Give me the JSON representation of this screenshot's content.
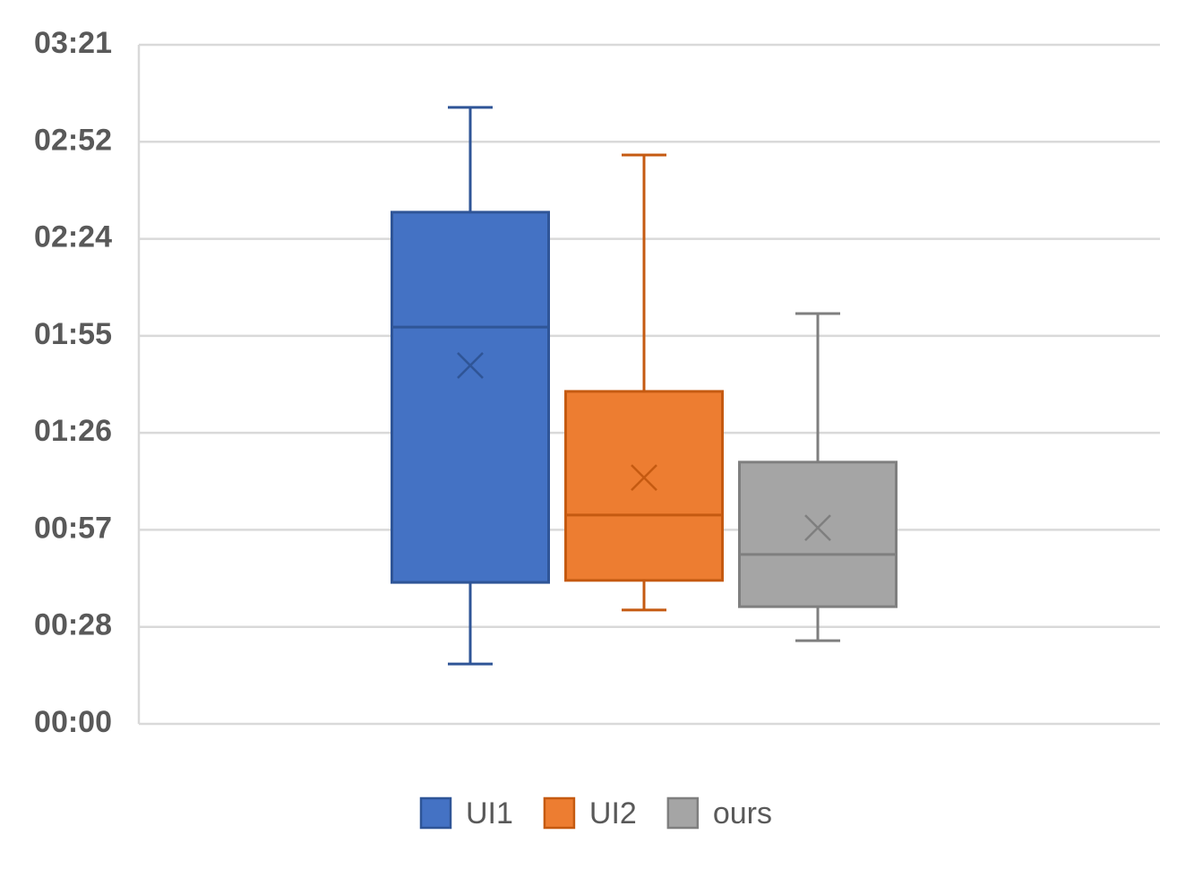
{
  "chart_data": {
    "type": "box",
    "ylim": [
      0,
      201.6
    ],
    "yticks": [
      {
        "value": 0,
        "label": "00:00"
      },
      {
        "value": 28.8,
        "label": "00:28"
      },
      {
        "value": 57.6,
        "label": "00:57"
      },
      {
        "value": 86.4,
        "label": "01:26"
      },
      {
        "value": 115.2,
        "label": "01:55"
      },
      {
        "value": 144,
        "label": "02:24"
      },
      {
        "value": 172.8,
        "label": "02:52"
      },
      {
        "value": 201.6,
        "label": "03:21"
      }
    ],
    "grid": true,
    "legend": "bottom",
    "series": [
      {
        "name": "UI1",
        "color": "#4472c4",
        "edge": "#2f5597",
        "min": 17.8,
        "q1": 42.0,
        "median": 117.8,
        "q3": 151.9,
        "max": 183.0,
        "mean": 106.4
      },
      {
        "name": "UI2",
        "color": "#ed7d31",
        "edge": "#c55a11",
        "min": 33.8,
        "q1": 42.6,
        "median": 62.0,
        "q3": 98.7,
        "max": 168.9,
        "mean": 73.1
      },
      {
        "name": "ours",
        "color": "#a5a5a5",
        "edge": "#7f7f7f",
        "min": 24.7,
        "q1": 34.8,
        "median": 50.3,
        "q3": 77.7,
        "max": 121.8,
        "mean": 58.2
      }
    ]
  }
}
